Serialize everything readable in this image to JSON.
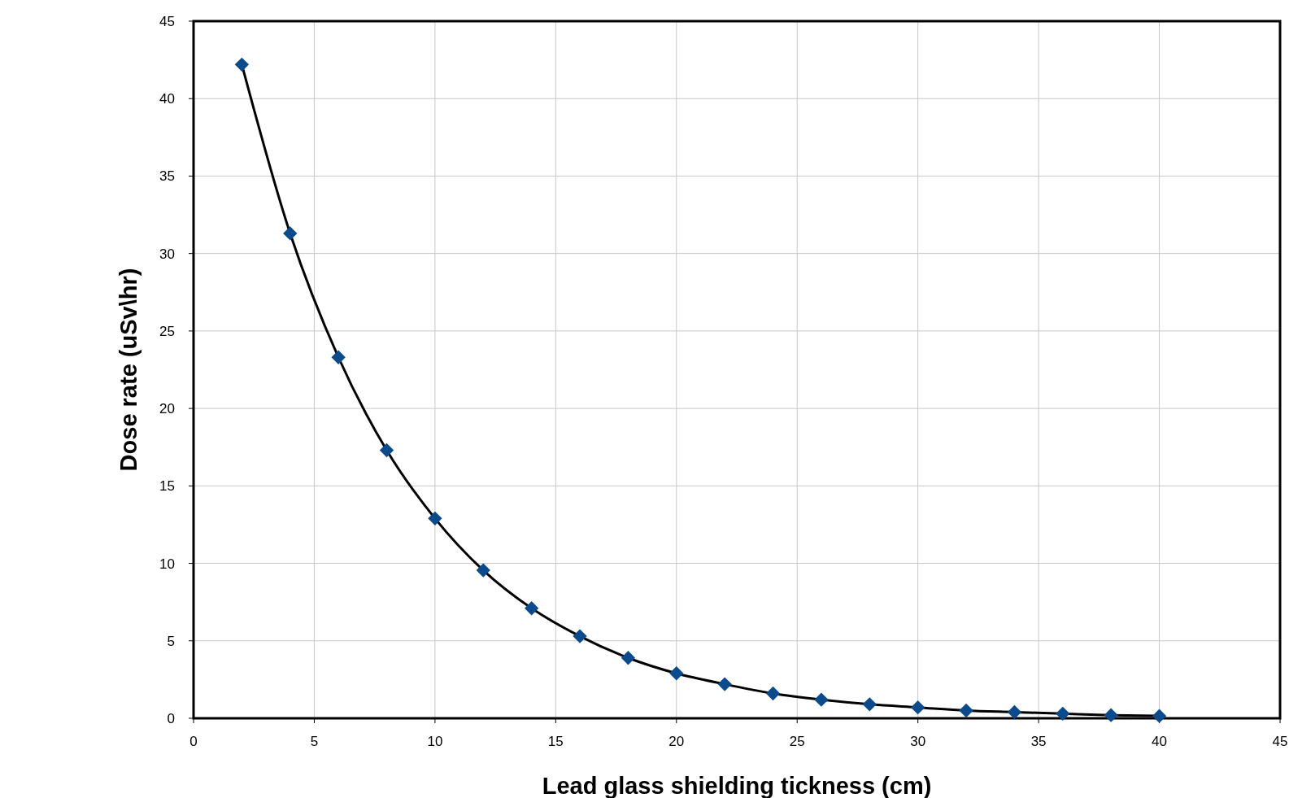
{
  "chart_data": {
    "type": "line",
    "xlabel": "Lead glass shielding tickness (cm)",
    "ylabel": "Dose rate (uSv\\hr)",
    "x": [
      2,
      4,
      6,
      8,
      10,
      12,
      14,
      16,
      18,
      20,
      22,
      24,
      26,
      28,
      30,
      32,
      34,
      36,
      38,
      40
    ],
    "series": [
      {
        "color": "#0b4a8b",
        "values": [
          42.2,
          31.3,
          23.3,
          17.3,
          12.9,
          9.55,
          7.1,
          5.3,
          3.9,
          2.9,
          2.2,
          1.6,
          1.2,
          0.9,
          0.7,
          0.5,
          0.4,
          0.3,
          0.2,
          0.15
        ]
      }
    ],
    "xlim": [
      0,
      45
    ],
    "xticks": [
      0,
      5,
      10,
      15,
      20,
      25,
      30,
      35,
      40,
      45
    ],
    "ylim": [
      0,
      45
    ],
    "yticks": [
      0,
      5,
      10,
      15,
      20,
      25,
      30,
      35,
      40,
      45
    ],
    "grid": true,
    "marker": "diamond",
    "line_style": "solid"
  }
}
